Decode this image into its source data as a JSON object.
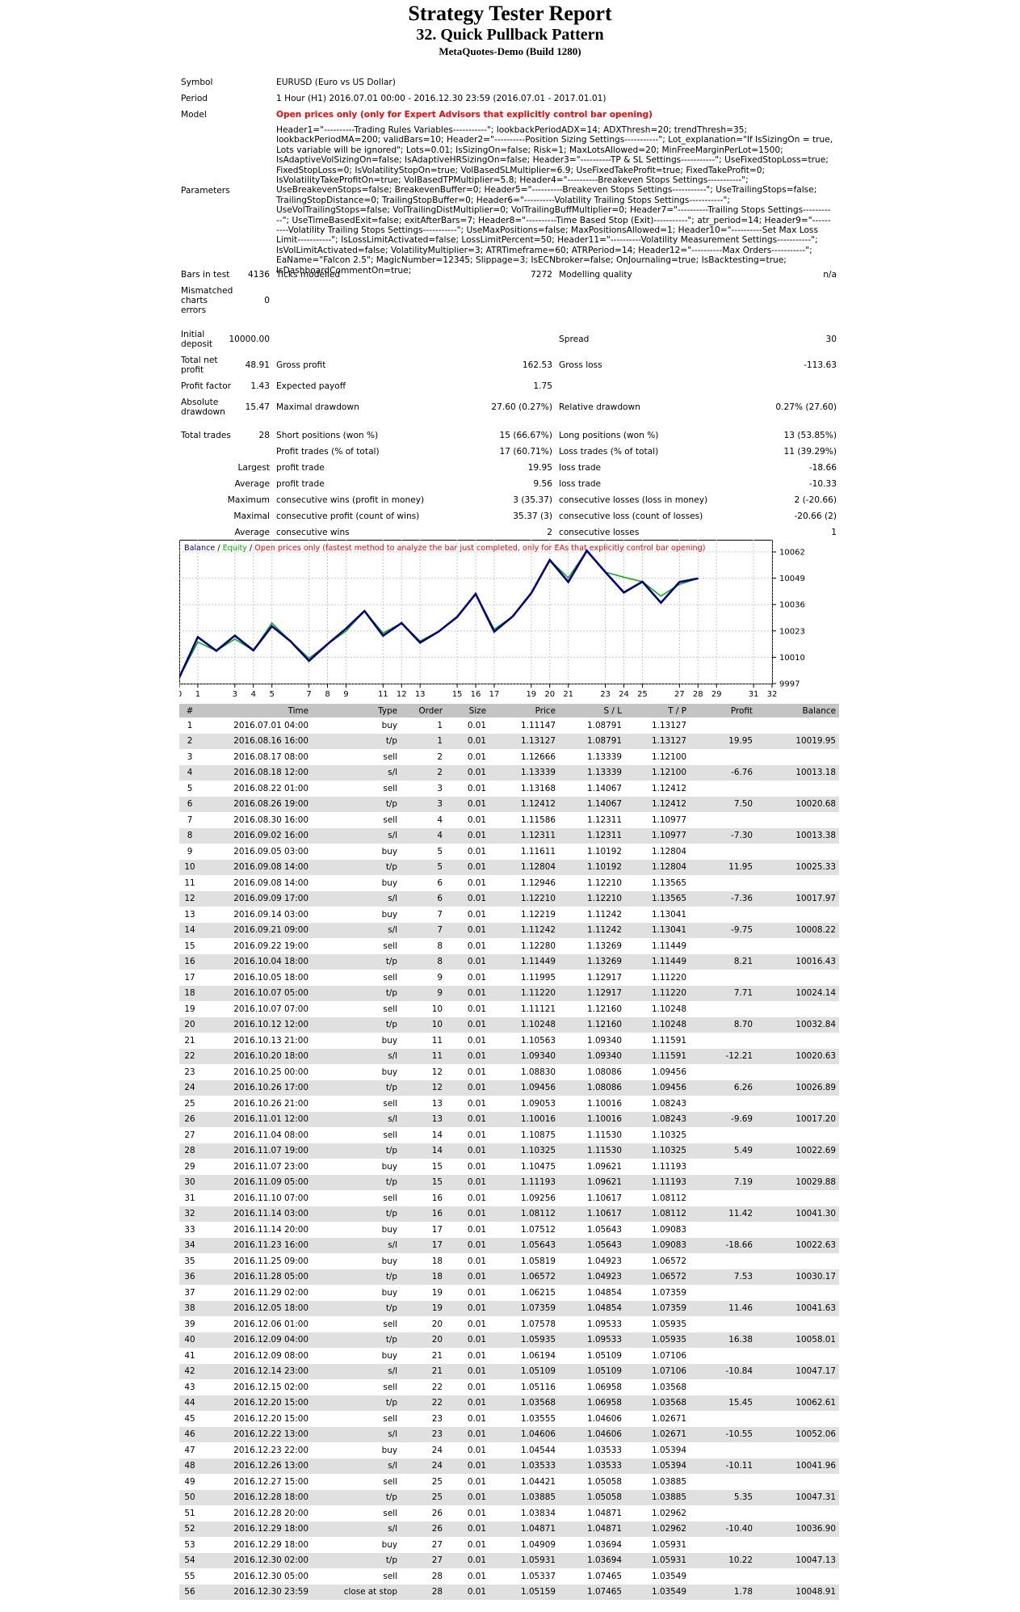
{
  "header": {
    "title": "Strategy Tester Report",
    "subtitle": "32. Quick Pullback Pattern",
    "server": "MetaQuotes-Demo (Build 1280)"
  },
  "info": {
    "symbol_label": "Symbol",
    "symbol": "EURUSD (Euro vs US Dollar)",
    "period_label": "Period",
    "period": "1 Hour (H1) 2016.07.01 00:00 - 2016.12.30 23:59 (2016.07.01 - 2017.01.01)",
    "model_label": "Model",
    "model": "Open prices only (only for Expert Advisors that explicitly control bar opening)",
    "parameters_label": "Parameters",
    "parameters": "Header1=\"----------Trading Rules Variables-----------\"; lookbackPeriodADX=14; ADXThresh=20; trendThresh=35; lookbackPeriodMA=200; validBars=10; Header2=\"----------Position Sizing Settings-----------\"; Lot_explanation=\"If IsSizingOn = true, Lots variable will be ignored\"; Lots=0.01; IsSizingOn=false; Risk=1; MaxLotsAllowed=20; MinFreeMarginPerLot=1500; IsAdaptiveVolSizingOn=false; IsAdaptiveHRSizingOn=false; Header3=\"----------TP & SL Settings-----------\"; UseFixedStopLoss=true; FixedStopLoss=0; IsVolatilityStopOn=true; VolBasedSLMultiplier=6.9; UseFixedTakeProfit=true; FixedTakeProfit=0; IsVolatilityTakeProfitOn=true; VolBasedTPMultiplier=5.8; Header4=\"----------Breakeven Stops Settings-----------\"; UseBreakevenStops=false; BreakevenBuffer=0; Header5=\"----------Breakeven Stops Settings-----------\"; UseTrailingStops=false; TrailingStopDistance=0; TrailingStopBuffer=0; Header6=\"----------Volatility Trailing Stops Settings-----------\"; UseVolTrailingStops=false; VolTrailingDistMultiplier=0; VolTrailingBuffMultiplier=0; Header7=\"----------Trailing Stops Settings-----------\"; UseTimeBasedExit=false; exitAfterBars=7; Header8=\"----------Time Based Stop (Exit)-----------\"; atr_period=14; Header9=\"----------Volatility Trailing Stops Settings-----------\"; UseMaxPositions=false; MaxPositionsAllowed=1; Header10=\"----------Set Max Loss Limit-----------\"; IsLossLimitActivated=false; LossLimitPercent=50; Header11=\"----------Volatility Measurement Settings-----------\"; IsVolLimitActivated=false; VolatilityMultiplier=3; ATRTimeframe=60; ATRPeriod=14; Header12=\"----------Max Orders-----------\"; EaName=\"Falcon 2.5\"; MagicNumber=12345; Slippage=3; IsECNbroker=false; OnJournaling=true; IsBacktesting=true; IsDashboardCommentOn=true;"
  },
  "stats": {
    "bars_label": "Bars in test",
    "bars": "4136",
    "ticks_label": "Ticks modelled",
    "ticks": "7272",
    "mq_label": "Modelling quality",
    "mq": "n/a",
    "mis_l1": "Mismatched",
    "mis_l2": "charts",
    "mis_l3": "errors",
    "mis": "0",
    "dep_l1": "Initial",
    "dep_l2": "deposit",
    "dep": "10000.00",
    "spread_label": "Spread",
    "spread": "30",
    "tnp_l1": "Total net",
    "tnp_l2": "profit",
    "tnp": "48.91",
    "gp_label": "Gross profit",
    "gp": "162.53",
    "gl_label": "Gross loss",
    "gl": "-113.63",
    "pf_label": "Profit factor",
    "pf": "1.43",
    "ep_label": "Expected payoff",
    "ep": "1.75",
    "ad_l1": "Absolute",
    "ad_l2": "drawdown",
    "ad": "15.47",
    "md_label": "Maximal drawdown",
    "md": "27.60 (0.27%)",
    "rd_label": "Relative drawdown",
    "rd": "0.27% (27.60)",
    "tt_label": "Total trades",
    "tt": "28",
    "sp_label": "Short positions (won %)",
    "sp": "15 (66.67%)",
    "lp_label": "Long positions (won %)",
    "lp": "13 (53.85%)",
    "pt_label": "Profit trades (% of total)",
    "pt": "17 (60.71%)",
    "lt_label": "Loss trades (% of total)",
    "lt": "11 (39.29%)",
    "largest": "Largest",
    "lpt_label": "profit trade",
    "lpt": "19.95",
    "llt_label": "loss trade",
    "llt": "-18.66",
    "average": "Average",
    "apt_label": "profit trade",
    "apt": "9.56",
    "alt_label": "loss trade",
    "alt": "-10.33",
    "maximum": "Maximum",
    "mcw_label": "consecutive wins (profit in money)",
    "mcw": "3 (35.37)",
    "mcl_label": "consecutive losses (loss in money)",
    "mcl": "2 (-20.66)",
    "maximal": "Maximal",
    "mcp_label": "consecutive profit (count of wins)",
    "mcp": "35.37 (3)",
    "mclc_label": "consecutive loss (count of losses)",
    "mclc": "-20.66 (2)",
    "average2": "Average",
    "acw_label": "consecutive wins",
    "acw": "2",
    "acl_label": "consecutive losses",
    "acl": "1"
  },
  "chart_data": {
    "type": "line",
    "legend_balance": "Balance",
    "legend_sep1": " / ",
    "legend_equity": "Equity",
    "legend_sep2": " / ",
    "legend_note": "Open prices only (fastest method to analyze the bar just completed, only for EAs that explicitly control bar opening)",
    "colors": {
      "balance": "#00008b",
      "equity": "#00b000",
      "note": "#ff0000"
    },
    "ylim": [
      9997,
      10068
    ],
    "xlim": [
      0,
      32
    ],
    "y_ticks": [
      "10062",
      "10049",
      "10036",
      "10023",
      "10010",
      "9997"
    ],
    "x_ticks": [
      "0",
      "1",
      "3",
      "4",
      "5",
      "7",
      "8",
      "9",
      "11",
      "12",
      "13",
      "15",
      "16",
      "17",
      "19",
      "20",
      "21",
      "23",
      "24",
      "25",
      "27",
      "28",
      "29",
      "31",
      "32"
    ],
    "series": [
      {
        "name": "Balance",
        "x": [
          0,
          1,
          2,
          3,
          4,
          5,
          6,
          7,
          8,
          9,
          10,
          11,
          12,
          13,
          14,
          15,
          16,
          17,
          18,
          19,
          20,
          21,
          22,
          23,
          24,
          25,
          26,
          27,
          28
        ],
        "values": [
          10000.0,
          10019.95,
          10013.18,
          10020.68,
          10013.38,
          10025.33,
          10017.97,
          10008.22,
          10016.43,
          10024.14,
          10032.84,
          10020.63,
          10026.89,
          10017.2,
          10022.69,
          10029.88,
          10041.3,
          10022.63,
          10030.17,
          10041.63,
          10058.01,
          10047.17,
          10062.61,
          10052.06,
          10041.96,
          10047.31,
          10036.9,
          10047.13,
          10048.91
        ]
      },
      {
        "name": "Equity",
        "x": [
          0,
          1,
          2,
          3,
          4,
          5,
          6,
          7,
          8,
          9,
          10,
          11,
          12,
          13,
          14,
          15,
          16,
          17,
          18,
          19,
          20,
          21,
          22,
          23,
          24,
          25,
          26,
          27,
          28
        ],
        "values": [
          10000.0,
          10017.5,
          10013.18,
          10019.0,
          10013.38,
          10026.9,
          10017.97,
          10009.5,
          10016.43,
          10022.9,
          10032.84,
          10021.9,
          10026.89,
          10018.0,
          10022.69,
          10029.88,
          10041.3,
          10023.8,
          10030.17,
          10041.63,
          10058.01,
          10049.2,
          10062.61,
          10052.06,
          10049.5,
          10047.31,
          10040.2,
          10046.0,
          10048.91
        ]
      }
    ]
  },
  "deals": {
    "headers": [
      "#",
      "Time",
      "Type",
      "Order",
      "Size",
      "Price",
      "S / L",
      "T / P",
      "Profit",
      "Balance"
    ],
    "rows": [
      [
        "1",
        "2016.07.01 04:00",
        "buy",
        "1",
        "0.01",
        "1.11147",
        "1.08791",
        "1.13127",
        "",
        ""
      ],
      [
        "2",
        "2016.08.16 16:00",
        "t/p",
        "1",
        "0.01",
        "1.13127",
        "1.08791",
        "1.13127",
        "19.95",
        "10019.95"
      ],
      [
        "3",
        "2016.08.17 08:00",
        "sell",
        "2",
        "0.01",
        "1.12666",
        "1.13339",
        "1.12100",
        "",
        ""
      ],
      [
        "4",
        "2016.08.18 12:00",
        "s/l",
        "2",
        "0.01",
        "1.13339",
        "1.13339",
        "1.12100",
        "-6.76",
        "10013.18"
      ],
      [
        "5",
        "2016.08.22 01:00",
        "sell",
        "3",
        "0.01",
        "1.13168",
        "1.14067",
        "1.12412",
        "",
        ""
      ],
      [
        "6",
        "2016.08.26 19:00",
        "t/p",
        "3",
        "0.01",
        "1.12412",
        "1.14067",
        "1.12412",
        "7.50",
        "10020.68"
      ],
      [
        "7",
        "2016.08.30 16:00",
        "sell",
        "4",
        "0.01",
        "1.11586",
        "1.12311",
        "1.10977",
        "",
        ""
      ],
      [
        "8",
        "2016.09.02 16:00",
        "s/l",
        "4",
        "0.01",
        "1.12311",
        "1.12311",
        "1.10977",
        "-7.30",
        "10013.38"
      ],
      [
        "9",
        "2016.09.05 03:00",
        "buy",
        "5",
        "0.01",
        "1.11611",
        "1.10192",
        "1.12804",
        "",
        ""
      ],
      [
        "10",
        "2016.09.08 14:00",
        "t/p",
        "5",
        "0.01",
        "1.12804",
        "1.10192",
        "1.12804",
        "11.95",
        "10025.33"
      ],
      [
        "11",
        "2016.09.08 14:00",
        "buy",
        "6",
        "0.01",
        "1.12946",
        "1.12210",
        "1.13565",
        "",
        ""
      ],
      [
        "12",
        "2016.09.09 17:00",
        "s/l",
        "6",
        "0.01",
        "1.12210",
        "1.12210",
        "1.13565",
        "-7.36",
        "10017.97"
      ],
      [
        "13",
        "2016.09.14 03:00",
        "buy",
        "7",
        "0.01",
        "1.12219",
        "1.11242",
        "1.13041",
        "",
        ""
      ],
      [
        "14",
        "2016.09.21 09:00",
        "s/l",
        "7",
        "0.01",
        "1.11242",
        "1.11242",
        "1.13041",
        "-9.75",
        "10008.22"
      ],
      [
        "15",
        "2016.09.22 19:00",
        "sell",
        "8",
        "0.01",
        "1.12280",
        "1.13269",
        "1.11449",
        "",
        ""
      ],
      [
        "16",
        "2016.10.04 18:00",
        "t/p",
        "8",
        "0.01",
        "1.11449",
        "1.13269",
        "1.11449",
        "8.21",
        "10016.43"
      ],
      [
        "17",
        "2016.10.05 18:00",
        "sell",
        "9",
        "0.01",
        "1.11995",
        "1.12917",
        "1.11220",
        "",
        ""
      ],
      [
        "18",
        "2016.10.07 05:00",
        "t/p",
        "9",
        "0.01",
        "1.11220",
        "1.12917",
        "1.11220",
        "7.71",
        "10024.14"
      ],
      [
        "19",
        "2016.10.07 07:00",
        "sell",
        "10",
        "0.01",
        "1.11121",
        "1.12160",
        "1.10248",
        "",
        ""
      ],
      [
        "20",
        "2016.10.12 12:00",
        "t/p",
        "10",
        "0.01",
        "1.10248",
        "1.12160",
        "1.10248",
        "8.70",
        "10032.84"
      ],
      [
        "21",
        "2016.10.13 21:00",
        "buy",
        "11",
        "0.01",
        "1.10563",
        "1.09340",
        "1.11591",
        "",
        ""
      ],
      [
        "22",
        "2016.10.20 18:00",
        "s/l",
        "11",
        "0.01",
        "1.09340",
        "1.09340",
        "1.11591",
        "-12.21",
        "10020.63"
      ],
      [
        "23",
        "2016.10.25 00:00",
        "buy",
        "12",
        "0.01",
        "1.08830",
        "1.08086",
        "1.09456",
        "",
        ""
      ],
      [
        "24",
        "2016.10.26 17:00",
        "t/p",
        "12",
        "0.01",
        "1.09456",
        "1.08086",
        "1.09456",
        "6.26",
        "10026.89"
      ],
      [
        "25",
        "2016.10.26 21:00",
        "sell",
        "13",
        "0.01",
        "1.09053",
        "1.10016",
        "1.08243",
        "",
        ""
      ],
      [
        "26",
        "2016.11.01 12:00",
        "s/l",
        "13",
        "0.01",
        "1.10016",
        "1.10016",
        "1.08243",
        "-9.69",
        "10017.20"
      ],
      [
        "27",
        "2016.11.04 08:00",
        "sell",
        "14",
        "0.01",
        "1.10875",
        "1.11530",
        "1.10325",
        "",
        ""
      ],
      [
        "28",
        "2016.11.07 19:00",
        "t/p",
        "14",
        "0.01",
        "1.10325",
        "1.11530",
        "1.10325",
        "5.49",
        "10022.69"
      ],
      [
        "29",
        "2016.11.07 23:00",
        "buy",
        "15",
        "0.01",
        "1.10475",
        "1.09621",
        "1.11193",
        "",
        ""
      ],
      [
        "30",
        "2016.11.09 05:00",
        "t/p",
        "15",
        "0.01",
        "1.11193",
        "1.09621",
        "1.11193",
        "7.19",
        "10029.88"
      ],
      [
        "31",
        "2016.11.10 07:00",
        "sell",
        "16",
        "0.01",
        "1.09256",
        "1.10617",
        "1.08112",
        "",
        ""
      ],
      [
        "32",
        "2016.11.14 03:00",
        "t/p",
        "16",
        "0.01",
        "1.08112",
        "1.10617",
        "1.08112",
        "11.42",
        "10041.30"
      ],
      [
        "33",
        "2016.11.14 20:00",
        "buy",
        "17",
        "0.01",
        "1.07512",
        "1.05643",
        "1.09083",
        "",
        ""
      ],
      [
        "34",
        "2016.11.23 16:00",
        "s/l",
        "17",
        "0.01",
        "1.05643",
        "1.05643",
        "1.09083",
        "-18.66",
        "10022.63"
      ],
      [
        "35",
        "2016.11.25 09:00",
        "buy",
        "18",
        "0.01",
        "1.05819",
        "1.04923",
        "1.06572",
        "",
        ""
      ],
      [
        "36",
        "2016.11.28 05:00",
        "t/p",
        "18",
        "0.01",
        "1.06572",
        "1.04923",
        "1.06572",
        "7.53",
        "10030.17"
      ],
      [
        "37",
        "2016.11.29 02:00",
        "buy",
        "19",
        "0.01",
        "1.06215",
        "1.04854",
        "1.07359",
        "",
        ""
      ],
      [
        "38",
        "2016.12.05 18:00",
        "t/p",
        "19",
        "0.01",
        "1.07359",
        "1.04854",
        "1.07359",
        "11.46",
        "10041.63"
      ],
      [
        "39",
        "2016.12.06 01:00",
        "sell",
        "20",
        "0.01",
        "1.07578",
        "1.09533",
        "1.05935",
        "",
        ""
      ],
      [
        "40",
        "2016.12.09 04:00",
        "t/p",
        "20",
        "0.01",
        "1.05935",
        "1.09533",
        "1.05935",
        "16.38",
        "10058.01"
      ],
      [
        "41",
        "2016.12.09 08:00",
        "buy",
        "21",
        "0.01",
        "1.06194",
        "1.05109",
        "1.07106",
        "",
        ""
      ],
      [
        "42",
        "2016.12.14 23:00",
        "s/l",
        "21",
        "0.01",
        "1.05109",
        "1.05109",
        "1.07106",
        "-10.84",
        "10047.17"
      ],
      [
        "43",
        "2016.12.15 02:00",
        "sell",
        "22",
        "0.01",
        "1.05116",
        "1.06958",
        "1.03568",
        "",
        ""
      ],
      [
        "44",
        "2016.12.20 15:00",
        "t/p",
        "22",
        "0.01",
        "1.03568",
        "1.06958",
        "1.03568",
        "15.45",
        "10062.61"
      ],
      [
        "45",
        "2016.12.20 15:00",
        "sell",
        "23",
        "0.01",
        "1.03555",
        "1.04606",
        "1.02671",
        "",
        ""
      ],
      [
        "46",
        "2016.12.22 13:00",
        "s/l",
        "23",
        "0.01",
        "1.04606",
        "1.04606",
        "1.02671",
        "-10.55",
        "10052.06"
      ],
      [
        "47",
        "2016.12.23 22:00",
        "buy",
        "24",
        "0.01",
        "1.04544",
        "1.03533",
        "1.05394",
        "",
        ""
      ],
      [
        "48",
        "2016.12.26 13:00",
        "s/l",
        "24",
        "0.01",
        "1.03533",
        "1.03533",
        "1.05394",
        "-10.11",
        "10041.96"
      ],
      [
        "49",
        "2016.12.27 15:00",
        "sell",
        "25",
        "0.01",
        "1.04421",
        "1.05058",
        "1.03885",
        "",
        ""
      ],
      [
        "50",
        "2016.12.28 18:00",
        "t/p",
        "25",
        "0.01",
        "1.03885",
        "1.05058",
        "1.03885",
        "5.35",
        "10047.31"
      ],
      [
        "51",
        "2016.12.28 20:00",
        "sell",
        "26",
        "0.01",
        "1.03834",
        "1.04871",
        "1.02962",
        "",
        ""
      ],
      [
        "52",
        "2016.12.29 18:00",
        "s/l",
        "26",
        "0.01",
        "1.04871",
        "1.04871",
        "1.02962",
        "-10.40",
        "10036.90"
      ],
      [
        "53",
        "2016.12.29 18:00",
        "buy",
        "27",
        "0.01",
        "1.04909",
        "1.03694",
        "1.05931",
        "",
        ""
      ],
      [
        "54",
        "2016.12.30 02:00",
        "t/p",
        "27",
        "0.01",
        "1.05931",
        "1.03694",
        "1.05931",
        "10.22",
        "10047.13"
      ],
      [
        "55",
        "2016.12.30 05:00",
        "sell",
        "28",
        "0.01",
        "1.05337",
        "1.07465",
        "1.03549",
        "",
        ""
      ],
      [
        "56",
        "2016.12.30 23:59",
        "close at stop",
        "28",
        "0.01",
        "1.05159",
        "1.07465",
        "1.03549",
        "1.78",
        "10048.91"
      ]
    ]
  }
}
